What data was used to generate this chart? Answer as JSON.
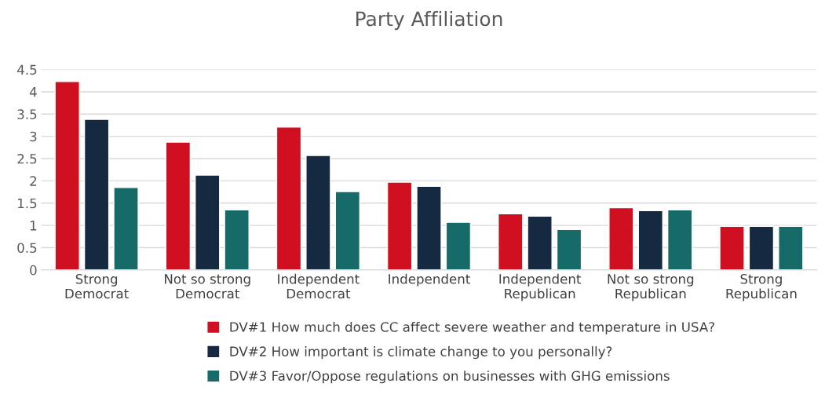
{
  "chart_data": {
    "type": "bar",
    "title": "Party Affiliation",
    "categories": [
      "Strong\nDemocrat",
      "Not so strong\nDemocrat",
      "Independent\nDemocrat",
      "Independent",
      "Independent\nRepublican",
      "Not so strong\nRepublican",
      "Strong\nRepublican"
    ],
    "series": [
      {
        "name": "DV#1 How much does CC affect severe weather and temperature in USA?",
        "color": "#d01020",
        "values": [
          4.23,
          2.87,
          3.21,
          1.97,
          1.26,
          1.4,
          0.98
        ]
      },
      {
        "name": "DV#2 How important is climate change to you personally?",
        "color": "#152a40",
        "values": [
          3.38,
          2.13,
          2.57,
          1.88,
          1.21,
          1.33,
          0.98
        ]
      },
      {
        "name": "DV#3 Favor/Oppose regulations on businesses with GHG emissions",
        "color": "#166b68",
        "values": [
          1.85,
          1.35,
          1.76,
          1.07,
          0.91,
          1.35,
          0.98
        ]
      }
    ],
    "ylim": [
      0,
      4.5
    ],
    "yticks": [
      0,
      0.5,
      1,
      1.5,
      2,
      2.5,
      3,
      3.5,
      4,
      4.5
    ],
    "grid": "y",
    "legend": "bottom"
  }
}
